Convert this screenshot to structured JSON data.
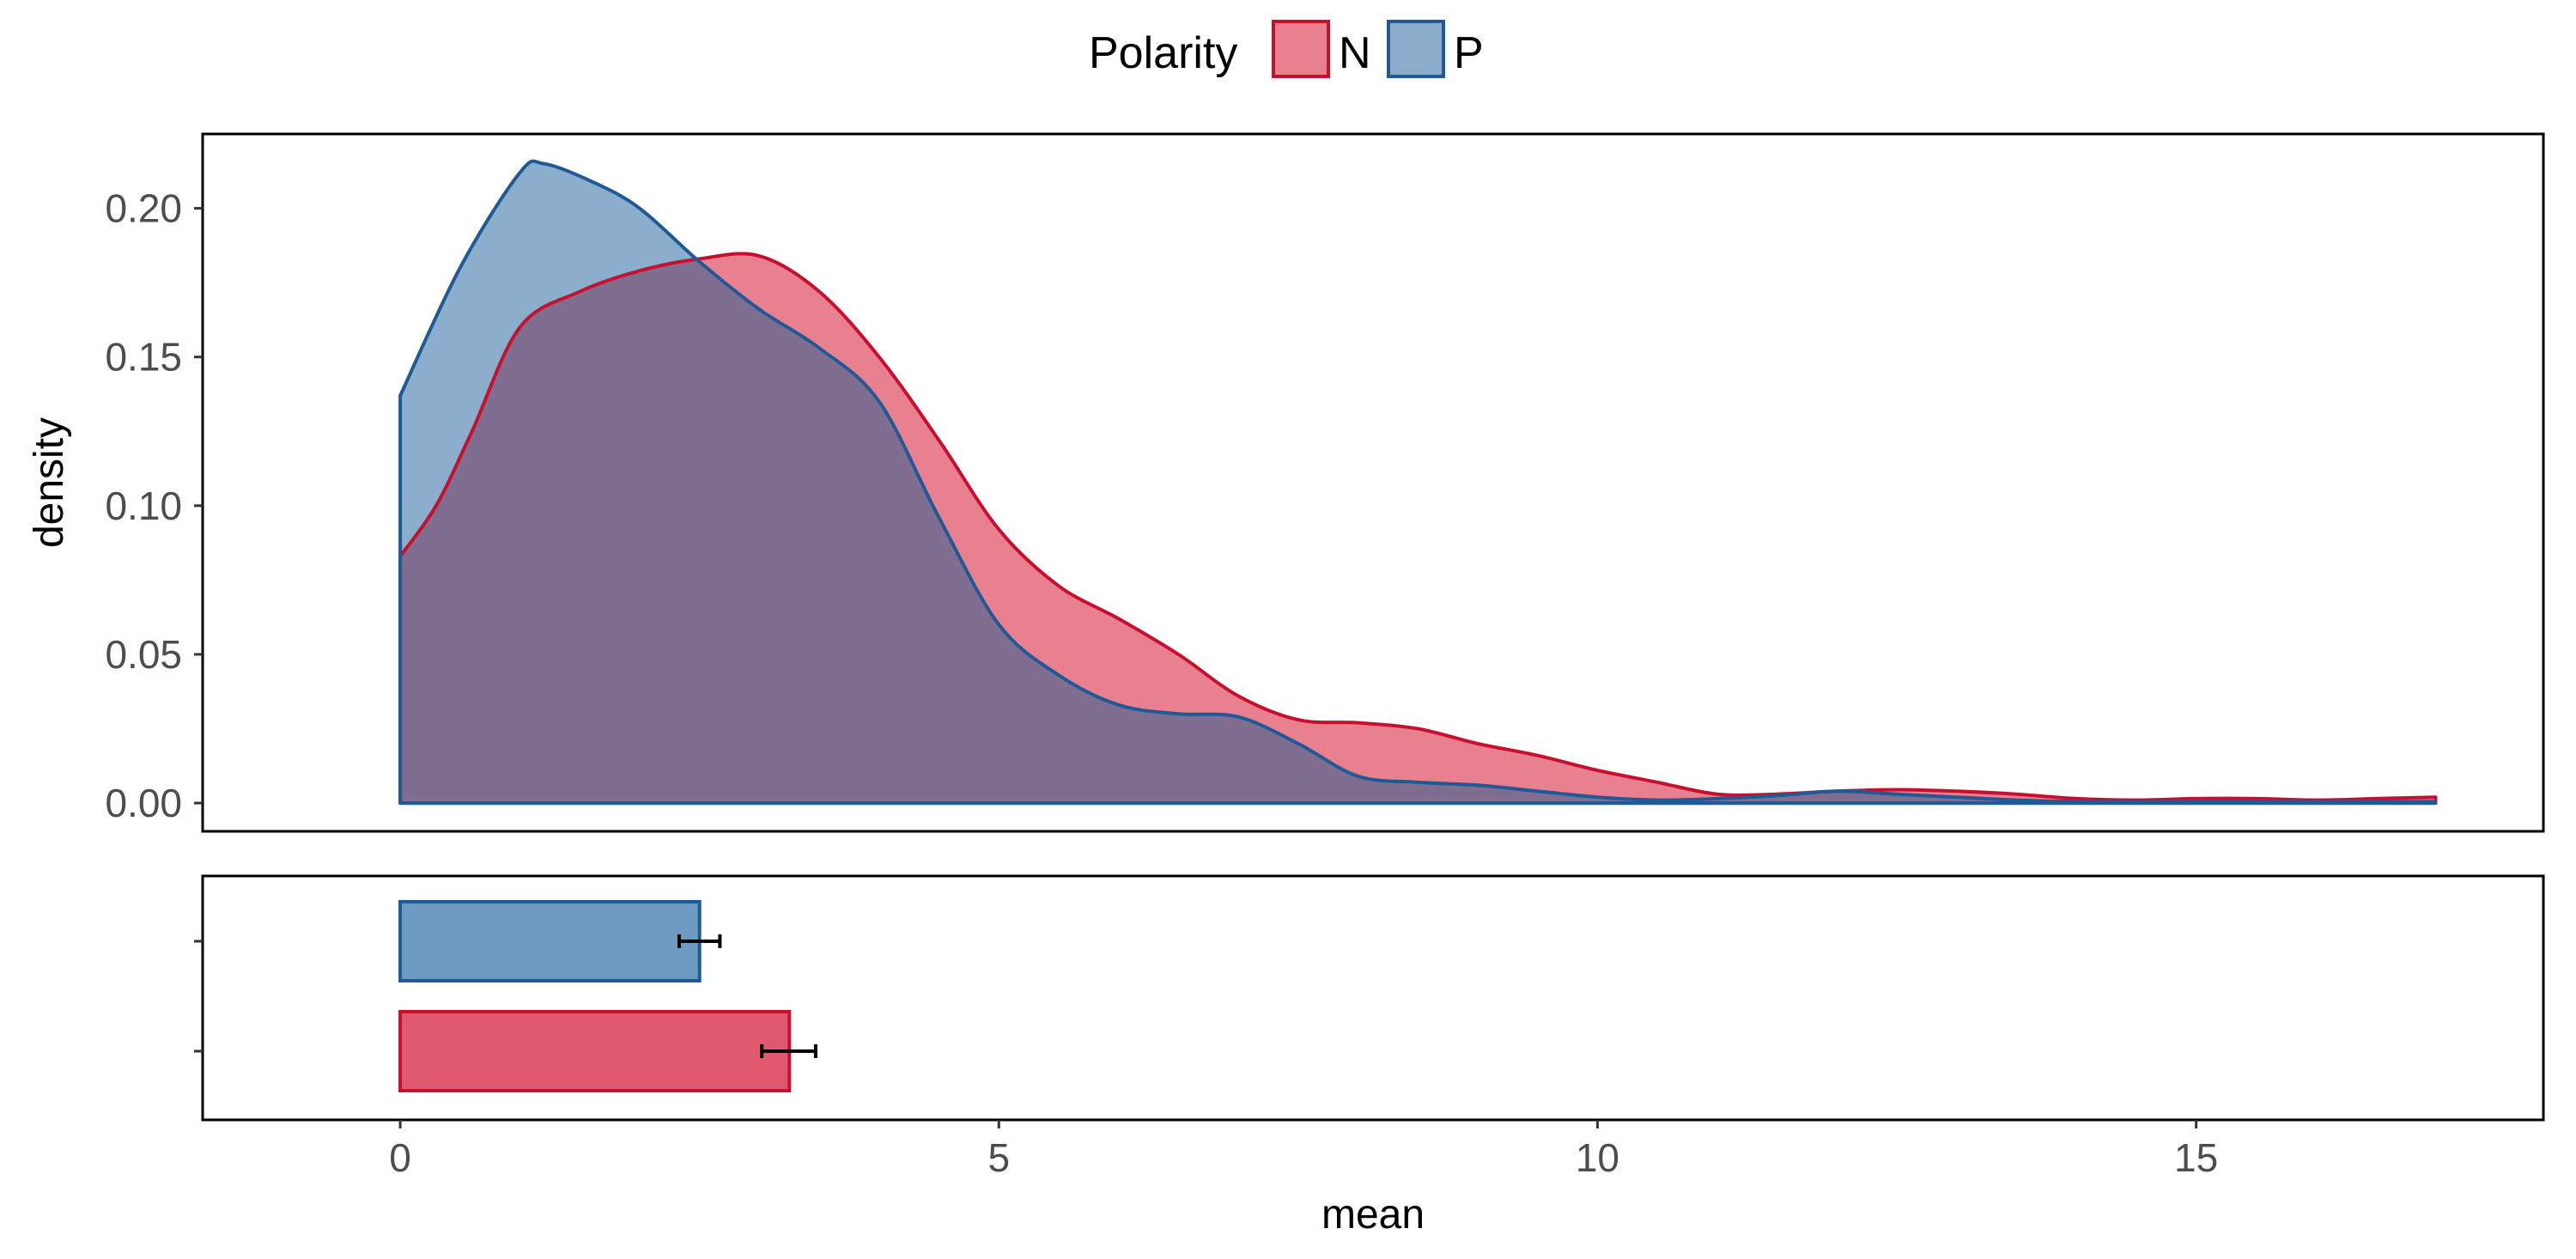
{
  "chart_data": [
    {
      "type": "area",
      "panel": "density",
      "ylabel": "density",
      "xlim": [
        -1.65,
        17.9
      ],
      "ylim": [
        -0.0095,
        0.225
      ],
      "yticks": [
        0.0,
        0.05,
        0.1,
        0.15,
        0.2
      ],
      "ytick_labels": [
        "0.00",
        "0.05",
        "0.10",
        "0.15",
        "0.20"
      ],
      "grid": false,
      "series": [
        {
          "name": "N",
          "fill": "#E8808F",
          "stroke": "#C8102E",
          "points": [
            [
              0,
              0.083
            ],
            [
              0.3,
              0.1
            ],
            [
              0.6,
              0.125
            ],
            [
              1,
              0.16
            ],
            [
              1.5,
              0.172
            ],
            [
              2,
              0.179
            ],
            [
              2.5,
              0.183
            ],
            [
              3,
              0.184
            ],
            [
              3.5,
              0.172
            ],
            [
              4,
              0.15
            ],
            [
              4.5,
              0.122
            ],
            [
              5,
              0.092
            ],
            [
              5.5,
              0.073
            ],
            [
              6,
              0.062
            ],
            [
              6.5,
              0.05
            ],
            [
              7,
              0.036
            ],
            [
              7.5,
              0.028
            ],
            [
              8,
              0.027
            ],
            [
              8.5,
              0.025
            ],
            [
              9,
              0.02
            ],
            [
              9.5,
              0.016
            ],
            [
              10,
              0.011
            ],
            [
              10.5,
              0.007
            ],
            [
              11,
              0.003
            ],
            [
              11.5,
              0.003
            ],
            [
              12,
              0.004
            ],
            [
              12.5,
              0.0045
            ],
            [
              13,
              0.004
            ],
            [
              13.5,
              0.003
            ],
            [
              14,
              0.0015
            ],
            [
              14.5,
              0.001
            ],
            [
              15,
              0.0015
            ],
            [
              15.5,
              0.0015
            ],
            [
              16,
              0.001
            ],
            [
              16.5,
              0.0015
            ],
            [
              17,
              0.002
            ]
          ]
        },
        {
          "name": "P",
          "fill": "#8AAECB",
          "stroke": "#1F5A96",
          "points": [
            [
              0,
              0.137
            ],
            [
              0.5,
              0.18
            ],
            [
              1,
              0.212
            ],
            [
              1.2,
              0.215
            ],
            [
              1.6,
              0.209
            ],
            [
              2,
              0.2
            ],
            [
              2.5,
              0.182
            ],
            [
              3,
              0.166
            ],
            [
              3.5,
              0.153
            ],
            [
              4,
              0.135
            ],
            [
              4.5,
              0.096
            ],
            [
              5,
              0.06
            ],
            [
              5.5,
              0.043
            ],
            [
              6,
              0.033
            ],
            [
              6.5,
              0.03
            ],
            [
              7,
              0.029
            ],
            [
              7.5,
              0.02
            ],
            [
              8,
              0.009
            ],
            [
              8.5,
              0.007
            ],
            [
              9,
              0.006
            ],
            [
              9.5,
              0.004
            ],
            [
              10,
              0.002
            ],
            [
              10.5,
              0.001
            ],
            [
              11,
              0.0015
            ],
            [
              11.5,
              0.0025
            ],
            [
              12,
              0.004
            ],
            [
              12.5,
              0.003
            ],
            [
              13,
              0.002
            ],
            [
              13.5,
              0.001
            ],
            [
              14,
              0.0005
            ],
            [
              15,
              0.0005
            ],
            [
              16,
              0.0005
            ],
            [
              17,
              0.0005
            ]
          ]
        }
      ]
    },
    {
      "type": "bar",
      "orientation": "horizontal",
      "panel": "mean",
      "xlabel": "mean",
      "xlim": [
        -1.65,
        17.9
      ],
      "xticks": [
        0,
        5,
        10,
        15
      ],
      "xtick_labels": [
        "0",
        "5",
        "10",
        "15"
      ],
      "categories": [
        "N",
        "P"
      ],
      "values": [
        3.25,
        2.5
      ],
      "error_low": [
        3.02,
        2.33
      ],
      "error_high": [
        3.47,
        2.67
      ],
      "fills": [
        "#E0596E",
        "#6E9BC1"
      ],
      "strokes": [
        "#C8102E",
        "#1F5A96"
      ],
      "grid": false
    }
  ],
  "legend": {
    "title": "Polarity",
    "placement": "top-center",
    "items": [
      {
        "label": "N",
        "fill": "#E8808F",
        "stroke": "#C8102E"
      },
      {
        "label": "P",
        "fill": "#8AAECB",
        "stroke": "#1F5A96"
      }
    ]
  },
  "overlap_color": "#7F6E8F"
}
